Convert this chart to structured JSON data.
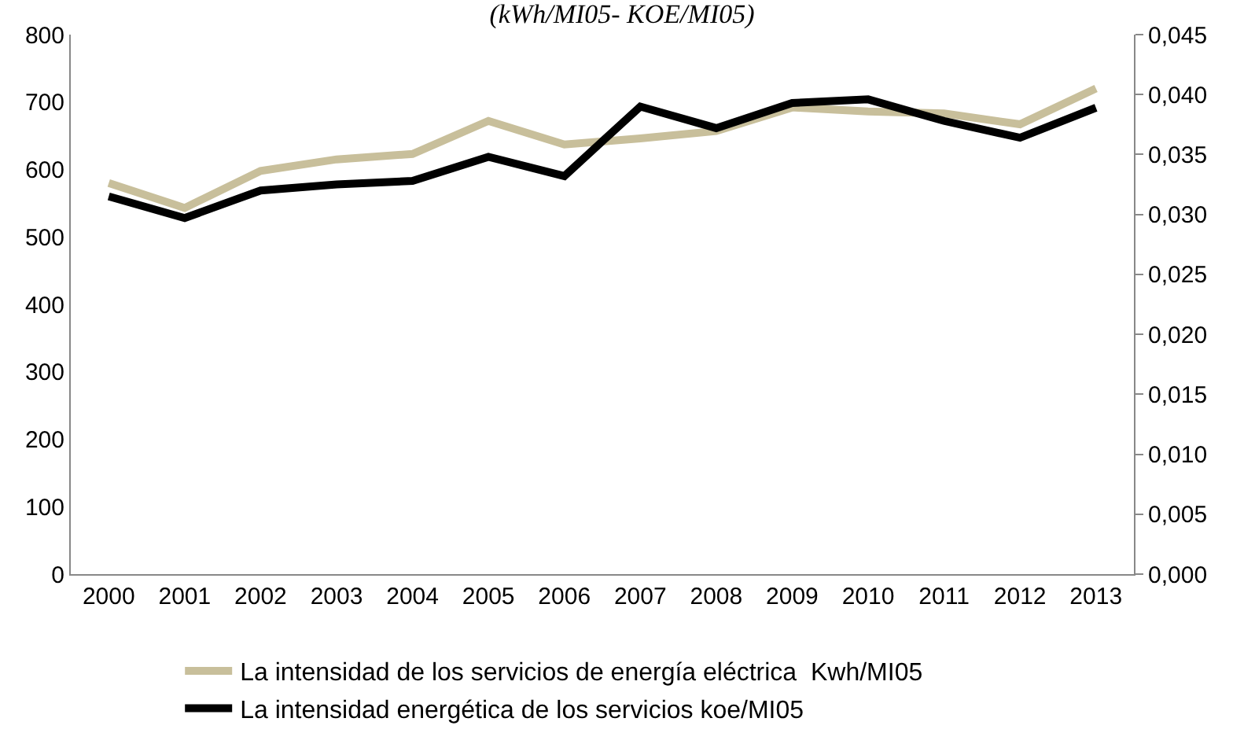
{
  "chart_data": {
    "type": "line",
    "title": "(kWh/MI05- KOE/MI05)",
    "categories": [
      "2000",
      "2001",
      "2002",
      "2003",
      "2004",
      "2005",
      "2006",
      "2007",
      "2008",
      "2009",
      "2010",
      "2011",
      "2012",
      "2013"
    ],
    "series": [
      {
        "name": "La intensidad de los servicios de energía eléctrica  Kwh/MI05",
        "color": "#c8bf9b",
        "values": [
          580,
          543,
          598,
          615,
          623,
          672,
          637,
          646,
          657,
          692,
          686,
          683,
          667,
          720
        ]
      },
      {
        "name": "La intensidad energética de los servicios koe/MI05",
        "color": "#000000",
        "axis": "y2",
        "values": [
          0.0315,
          0.0297,
          0.032,
          0.0325,
          0.0328,
          0.0348,
          0.0332,
          0.039,
          0.0372,
          0.0393,
          0.0396,
          0.0378,
          0.0364,
          0.0389
        ]
      }
    ],
    "ylim": [
      0,
      800
    ],
    "yticks": [
      0,
      100,
      200,
      300,
      400,
      500,
      600,
      700,
      800
    ],
    "y2lim": [
      0,
      0.045
    ],
    "y2ticks": [
      {
        "value": 0,
        "label": "0,000"
      },
      {
        "value": 0.005,
        "label": "0,005"
      },
      {
        "value": 0.01,
        "label": "0,010"
      },
      {
        "value": 0.015,
        "label": "0,015"
      },
      {
        "value": 0.02,
        "label": "0,020"
      },
      {
        "value": 0.025,
        "label": "0,025"
      },
      {
        "value": 0.03,
        "label": "0,030"
      },
      {
        "value": 0.035,
        "label": "0,035"
      },
      {
        "value": 0.04,
        "label": "0,040"
      },
      {
        "value": 0.045,
        "label": "0,045"
      }
    ],
    "legend": "bottom",
    "marker": "none",
    "line_style": "solid"
  }
}
